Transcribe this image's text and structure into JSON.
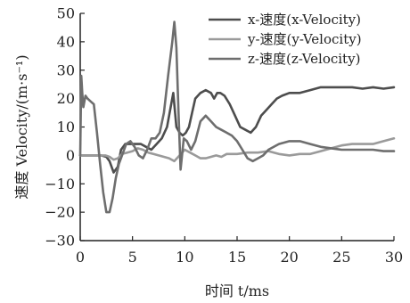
{
  "chart_data": {
    "type": "line",
    "xlabel": "时间 t/ms",
    "ylabel": "速度 Velocity/(m·s⁻¹)",
    "xlim": [
      0,
      30
    ],
    "ylim": [
      -30,
      50
    ],
    "xticks": [
      0,
      5,
      10,
      15,
      20,
      25,
      30
    ],
    "yticks": [
      -30,
      -20,
      -10,
      0,
      10,
      20,
      30,
      40,
      50
    ],
    "grid": false,
    "legend_position": "top-right",
    "series": [
      {
        "name": "x-速度(x-Velocity)",
        "color": "#4d4d4d",
        "x": [
          0,
          0.2,
          0.5,
          0.8,
          1.2,
          1.6,
          2.0,
          2.5,
          2.8,
          3.2,
          3.6,
          3.9,
          4.3,
          4.8,
          5.3,
          5.8,
          6.3,
          6.8,
          7.3,
          7.8,
          8.3,
          8.9,
          9.2,
          9.5,
          9.8,
          10.1,
          10.4,
          10.7,
          11.0,
          11.5,
          12.0,
          12.5,
          12.8,
          13.1,
          13.4,
          13.8,
          14.3,
          14.8,
          15.3,
          15.8,
          16.3,
          16.8,
          17.3,
          17.8,
          18.3,
          18.8,
          19.3,
          20,
          21,
          22,
          23,
          24,
          25,
          26,
          27,
          28,
          29,
          30
        ],
        "y": [
          0,
          0,
          0,
          0,
          0,
          0,
          0,
          -0.5,
          -2,
          -6,
          -4,
          2,
          4,
          4,
          4,
          4,
          3,
          2,
          4,
          6,
          10,
          22,
          10,
          8,
          7,
          8,
          10,
          15,
          20,
          22,
          23,
          22,
          20,
          22,
          22,
          21,
          18,
          14,
          10,
          9,
          8,
          10,
          14,
          16,
          18,
          20,
          21,
          22,
          22,
          23,
          24,
          24,
          24,
          24,
          23.5,
          24,
          23.5,
          24
        ]
      },
      {
        "name": "y-速度(y-Velocity)",
        "color": "#9a9a9a",
        "x": [
          0,
          0.5,
          1.0,
          1.5,
          2.0,
          2.4,
          2.8,
          3.2,
          3.6,
          4.0,
          4.5,
          5.0,
          5.5,
          6.0,
          6.5,
          7.0,
          7.5,
          8.0,
          8.5,
          9.0,
          9.5,
          10.0,
          10.5,
          11.0,
          11.5,
          12.0,
          12.5,
          13.0,
          13.5,
          14.0,
          14.5,
          15.0,
          16.0,
          17.0,
          18.0,
          19.0,
          20.0,
          21.0,
          22.0,
          23.0,
          24.0,
          25.0,
          26.0,
          27.0,
          28.0,
          29.0,
          30.0
        ],
        "y": [
          0,
          0,
          0,
          0,
          0,
          0,
          -0.5,
          -1.5,
          -1,
          0.5,
          1,
          1.5,
          2.5,
          2,
          1,
          0.5,
          0,
          -0.5,
          -1,
          -2,
          0,
          2,
          1,
          0,
          -1,
          -1,
          -0.5,
          0,
          -0.5,
          0.5,
          0.5,
          0.5,
          1,
          1,
          1.5,
          0.5,
          0,
          0.5,
          0.5,
          1.5,
          2.5,
          3.5,
          4,
          4,
          4,
          5,
          6
        ]
      },
      {
        "name": "z-速度(z-Velocity)",
        "color": "#6e6e6e",
        "x": [
          0,
          0.1,
          0.2,
          0.3,
          0.4,
          0.5,
          0.7,
          1.0,
          1.3,
          1.6,
          1.9,
          2.2,
          2.5,
          2.8,
          3.1,
          3.4,
          3.7,
          4.0,
          4.4,
          4.8,
          5.2,
          5.6,
          6.0,
          6.4,
          6.8,
          7.2,
          7.6,
          8.0,
          8.4,
          8.8,
          9.0,
          9.2,
          9.4,
          9.6,
          9.9,
          10.2,
          10.6,
          11.0,
          11.5,
          12.0,
          12.5,
          13.0,
          13.5,
          14.0,
          14.5,
          15.0,
          15.5,
          16.0,
          16.5,
          17.0,
          17.5,
          18.0,
          19.0,
          20.0,
          21.0,
          22.0,
          23.0,
          24.0,
          25.0,
          26.0,
          27.0,
          28.0,
          29.0,
          30.0
        ],
        "y": [
          0,
          28,
          22,
          17,
          19,
          21,
          20,
          19,
          18,
          8,
          -3,
          -13,
          -20,
          -20,
          -15,
          -8,
          -3,
          0,
          4,
          5,
          3,
          0,
          -1,
          2,
          6,
          6,
          8,
          15,
          28,
          40,
          47,
          38,
          15,
          -5,
          6,
          5,
          2,
          5,
          12,
          14,
          12,
          10,
          9,
          8,
          7,
          5,
          2,
          -1,
          -2,
          -1,
          0,
          2,
          4,
          5,
          5,
          4,
          3,
          2.5,
          2,
          2,
          2,
          2,
          1.5,
          1.5
        ]
      }
    ]
  }
}
